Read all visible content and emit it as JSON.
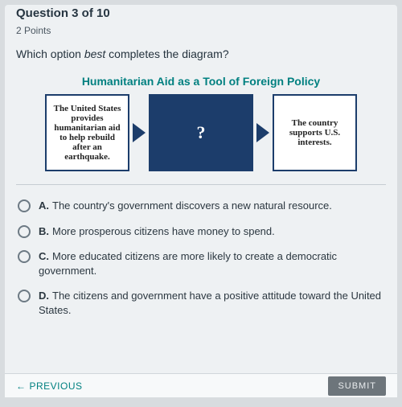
{
  "header": {
    "question_number": "Question 3 of 10",
    "points": "2 Points"
  },
  "prompt": {
    "pre": "Which option ",
    "italic": "best",
    "post": " completes the diagram?"
  },
  "diagram": {
    "title": "Humanitarian Aid as a Tool of Foreign Policy",
    "box1": "The United States provides humanitarian aid to help rebuild after an earthquake.",
    "box2": "?",
    "box3": "The country supports U.S. interests.",
    "colors": {
      "primary": "#1c3d6b",
      "title": "#008080",
      "box_bg": "#ffffff"
    }
  },
  "options": {
    "a": {
      "letter": "A.",
      "text": "The country's government discovers a new natural resource."
    },
    "b": {
      "letter": "B.",
      "text": "More prosperous citizens have money to spend."
    },
    "c": {
      "letter": "C.",
      "text": "More educated citizens are more likely to create a democratic government."
    },
    "d": {
      "letter": "D.",
      "text": "The citizens and government have a positive attitude toward the United States."
    }
  },
  "footer": {
    "previous": "PREVIOUS",
    "submit": "SUBMIT"
  }
}
